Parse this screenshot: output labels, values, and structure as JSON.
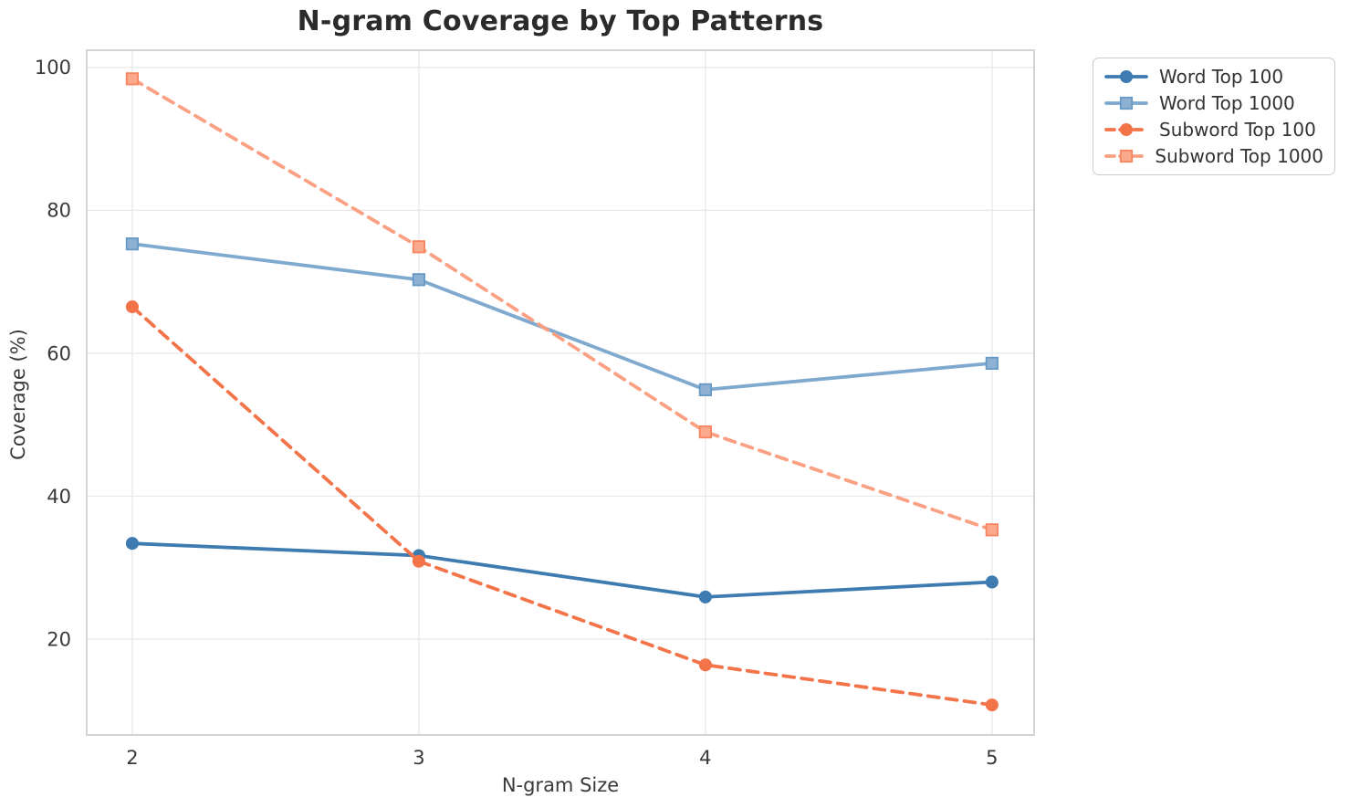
{
  "chart_data": {
    "type": "line",
    "title": "N-gram Coverage by Top Patterns",
    "xlabel": "N-gram Size",
    "ylabel": "Coverage (%)",
    "x": [
      2,
      3,
      4,
      5
    ],
    "x_ticks": [
      2,
      3,
      4,
      5
    ],
    "y_ticks": [
      20,
      40,
      60,
      80,
      100
    ],
    "xlim": [
      1.841,
      5.147
    ],
    "ylim": [
      6.6,
      102.4
    ],
    "grid": true,
    "legend_position": "outside-top-right",
    "series": [
      {
        "id": "word-top-100",
        "name": "Word Top 100",
        "values": [
          33.4,
          31.7,
          25.9,
          28.0
        ],
        "line_color": "#3d7bb0",
        "marker_fill": "#3d7bb0",
        "marker_edge": "#3d7bb0",
        "marker": "circle",
        "dash": false
      },
      {
        "id": "word-top-1000",
        "name": "Word Top 1000",
        "values": [
          75.3,
          70.3,
          54.9,
          58.6
        ],
        "line_color": "#7fa9ce",
        "marker_fill": "#8db0d3",
        "marker_edge": "#6699c5",
        "marker": "square",
        "dash": false
      },
      {
        "id": "subword-top-100",
        "name": "Subword Top 100",
        "values": [
          66.5,
          30.9,
          16.4,
          10.8
        ],
        "line_color": "#f4744a",
        "marker_fill": "#f4744a",
        "marker_edge": "#f4744a",
        "marker": "circle",
        "dash": true
      },
      {
        "id": "subword-top-1000",
        "name": "Subword Top 1000",
        "values": [
          98.4,
          74.9,
          49.0,
          35.3
        ],
        "line_color": "#faa083",
        "marker_fill": "#fba98d",
        "marker_edge": "#f8855f",
        "marker": "square",
        "dash": true
      }
    ],
    "colors": {
      "grid": "#e9e9e9",
      "spine": "#d4d4d4",
      "tick_text": "#3a3a3a",
      "title_text": "#2b2b2b",
      "legend_border": "#cccccc"
    }
  }
}
